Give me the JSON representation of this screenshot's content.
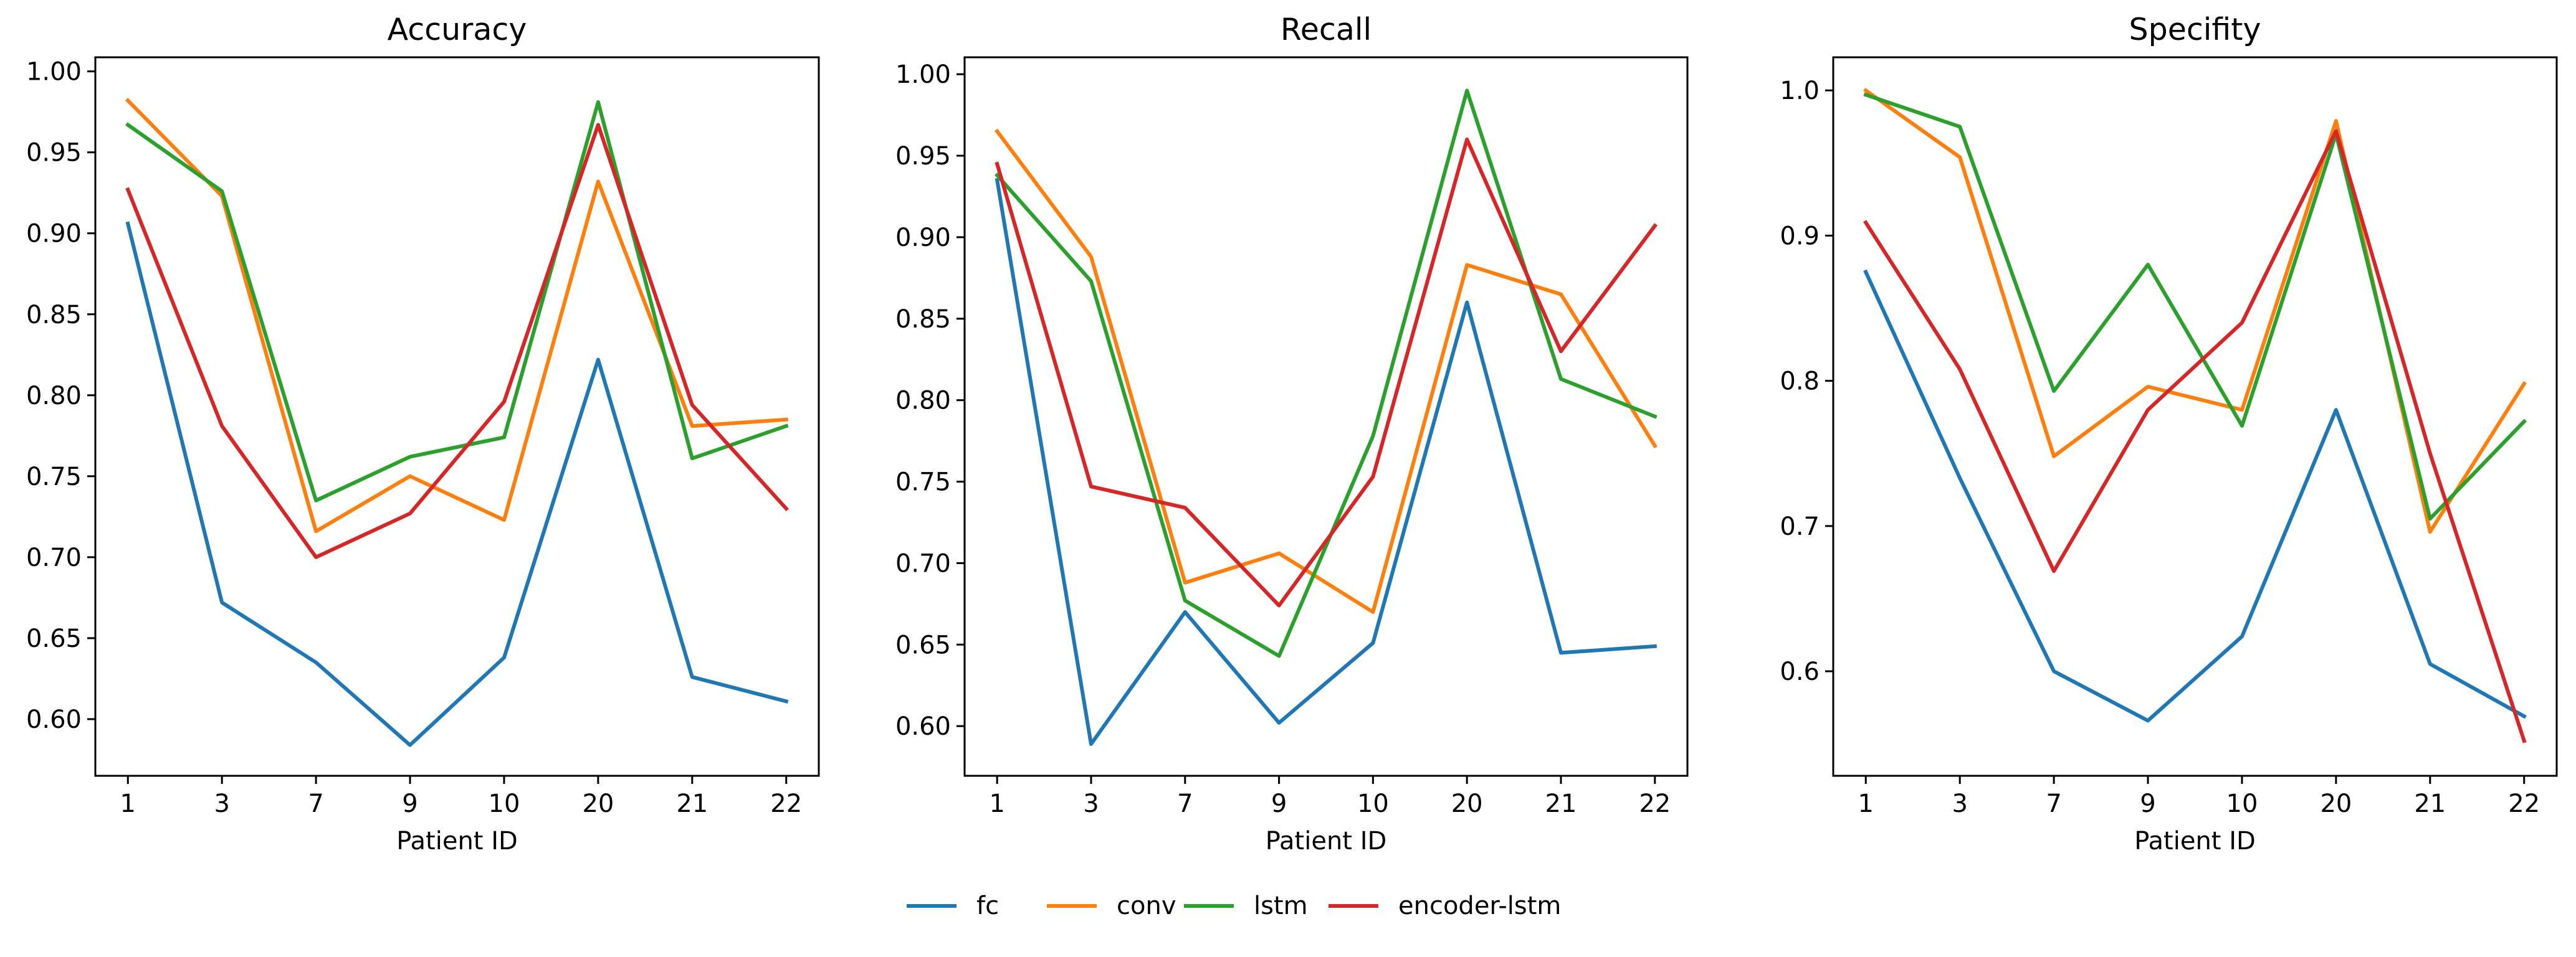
{
  "chart_data": [
    {
      "type": "line",
      "title": "Accuracy",
      "xlabel": "Patient ID",
      "ylabel": "",
      "categories": [
        "1",
        "3",
        "7",
        "9",
        "10",
        "20",
        "21",
        "22"
      ],
      "ylim": [
        0.565,
        1.0087
      ],
      "yticks": [
        "0.60",
        "0.65",
        "0.70",
        "0.75",
        "0.80",
        "0.85",
        "0.90",
        "0.95",
        "1.00"
      ],
      "series": [
        {
          "name": "fc",
          "values": [
            0.906,
            0.672,
            0.635,
            0.584,
            0.638,
            0.822,
            0.626,
            0.611
          ]
        },
        {
          "name": "conv",
          "values": [
            0.982,
            0.923,
            0.716,
            0.75,
            0.723,
            0.932,
            0.781,
            0.785
          ]
        },
        {
          "name": "lstm",
          "values": [
            0.967,
            0.926,
            0.735,
            0.762,
            0.774,
            0.981,
            0.761,
            0.781
          ]
        },
        {
          "name": "encoder-lstm",
          "values": [
            0.927,
            0.781,
            0.7,
            0.727,
            0.796,
            0.967,
            0.794,
            0.73
          ]
        }
      ]
    },
    {
      "type": "line",
      "title": "Recall",
      "xlabel": "Patient ID",
      "ylabel": "",
      "categories": [
        "1",
        "3",
        "7",
        "9",
        "10",
        "20",
        "21",
        "22"
      ],
      "ylim": [
        0.5695,
        1.0104
      ],
      "yticks": [
        "0.60",
        "0.65",
        "0.70",
        "0.75",
        "0.80",
        "0.85",
        "0.90",
        "0.95",
        "1.00"
      ],
      "series": [
        {
          "name": "fc",
          "values": [
            0.935,
            0.589,
            0.67,
            0.602,
            0.651,
            0.86,
            0.645,
            0.649
          ]
        },
        {
          "name": "conv",
          "values": [
            0.965,
            0.888,
            0.688,
            0.706,
            0.67,
            0.883,
            0.865,
            0.772
          ]
        },
        {
          "name": "lstm",
          "values": [
            0.938,
            0.873,
            0.677,
            0.643,
            0.778,
            0.99,
            0.813,
            0.79
          ]
        },
        {
          "name": "encoder-lstm",
          "values": [
            0.945,
            0.747,
            0.734,
            0.674,
            0.753,
            0.96,
            0.83,
            0.907
          ]
        }
      ]
    },
    {
      "type": "line",
      "title": "Specifity",
      "xlabel": "Patient ID",
      "ylabel": "",
      "categories": [
        "1",
        "3",
        "7",
        "9",
        "10",
        "20",
        "21",
        "22"
      ],
      "ylim": [
        0.528,
        1.0228
      ],
      "yticks": [
        "0.6",
        "0.7",
        "0.8",
        "0.9",
        "1.0"
      ],
      "series": [
        {
          "name": "fc",
          "values": [
            0.875,
            0.733,
            0.6,
            0.566,
            0.624,
            0.78,
            0.605,
            0.569
          ]
        },
        {
          "name": "conv",
          "values": [
            1.0,
            0.954,
            0.748,
            0.796,
            0.78,
            0.979,
            0.696,
            0.798
          ]
        },
        {
          "name": "lstm",
          "values": [
            0.997,
            0.975,
            0.793,
            0.88,
            0.769,
            0.97,
            0.705,
            0.772
          ]
        },
        {
          "name": "encoder-lstm",
          "values": [
            0.909,
            0.808,
            0.669,
            0.78,
            0.84,
            0.972,
            0.75,
            0.552
          ]
        }
      ]
    }
  ],
  "legend": {
    "placement": "bottom-center",
    "entries": [
      "fc",
      "conv",
      "lstm",
      "encoder-lstm"
    ]
  },
  "colors": {
    "fc": "#1f77b4",
    "conv": "#ff7f0e",
    "lstm": "#2ca02c",
    "encoder-lstm": "#d62728"
  }
}
